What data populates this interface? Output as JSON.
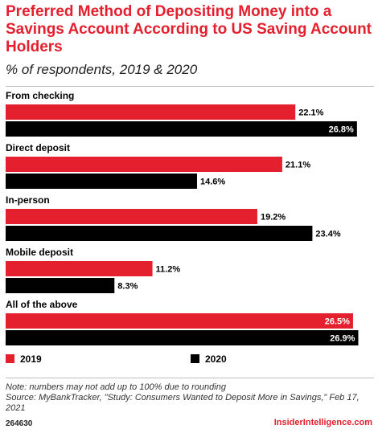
{
  "header": {
    "title": "Preferred Method of Depositing Money into a Savings Account According to US Saving Account Holders",
    "subtitle": "% of respondents, 2019 & 2020"
  },
  "chart_data": {
    "type": "bar",
    "orientation": "horizontal",
    "categories": [
      "From checking",
      "Direct deposit",
      "In-person",
      "Mobile deposit",
      "All of the above"
    ],
    "series": [
      {
        "name": "2019",
        "color": "#e4202e",
        "values": [
          22.1,
          21.1,
          19.2,
          11.2,
          26.5
        ]
      },
      {
        "name": "2020",
        "color": "#000000",
        "values": [
          26.8,
          14.6,
          23.4,
          8.3,
          26.9
        ]
      }
    ],
    "value_suffix": "%",
    "grid": false,
    "legend_position": "bottom-left"
  },
  "footer": {
    "note": "Note: numbers may not add up to 100% due to rounding",
    "source": "Source: MyBankTracker, \"Study: Consumers Wanted to Deposit More in Savings,\" Feb 17, 2021",
    "chart_id": "264630",
    "brand": "InsiderIntelligence.com"
  }
}
